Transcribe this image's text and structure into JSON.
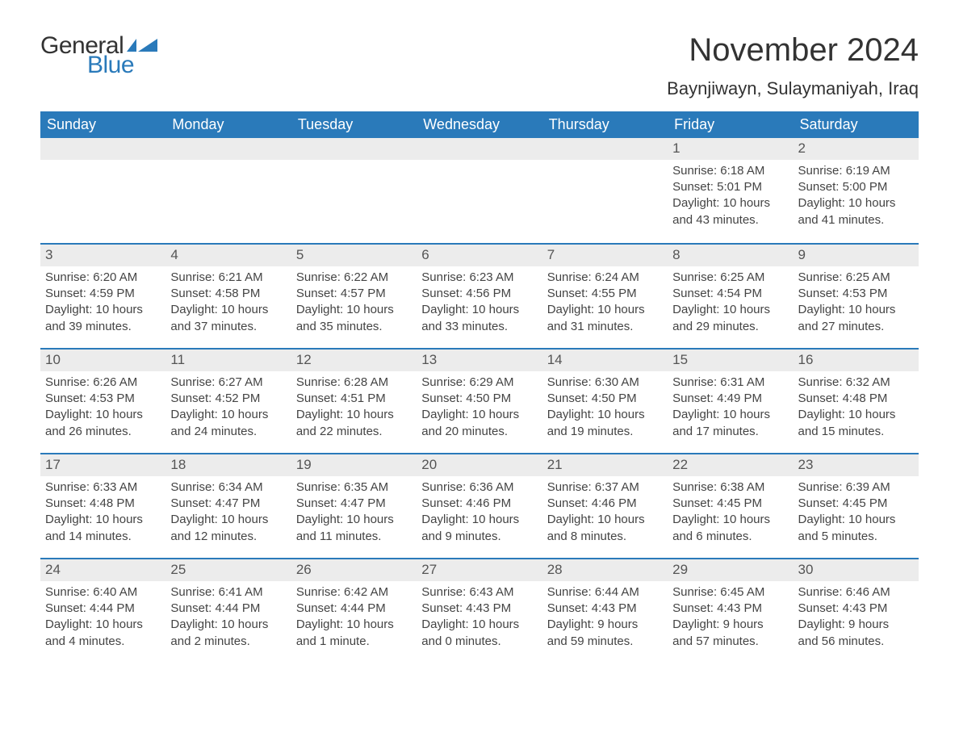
{
  "brand": {
    "general": "General",
    "blue": "Blue"
  },
  "title": "November 2024",
  "location": "Baynjiwayn, Sulaymaniyah, Iraq",
  "colors": {
    "header_bg": "#2a7aba",
    "header_text": "#ffffff",
    "day_bg": "#ececec",
    "text": "#333333",
    "border": "#2a7aba",
    "logo_blue": "#2a7aba"
  },
  "weekdays": [
    "Sunday",
    "Monday",
    "Tuesday",
    "Wednesday",
    "Thursday",
    "Friday",
    "Saturday"
  ],
  "weeks": [
    [
      null,
      null,
      null,
      null,
      null,
      {
        "day": "1",
        "sunrise": "Sunrise: 6:18 AM",
        "sunset": "Sunset: 5:01 PM",
        "daylight1": "Daylight: 10 hours",
        "daylight2": "and 43 minutes."
      },
      {
        "day": "2",
        "sunrise": "Sunrise: 6:19 AM",
        "sunset": "Sunset: 5:00 PM",
        "daylight1": "Daylight: 10 hours",
        "daylight2": "and 41 minutes."
      }
    ],
    [
      {
        "day": "3",
        "sunrise": "Sunrise: 6:20 AM",
        "sunset": "Sunset: 4:59 PM",
        "daylight1": "Daylight: 10 hours",
        "daylight2": "and 39 minutes."
      },
      {
        "day": "4",
        "sunrise": "Sunrise: 6:21 AM",
        "sunset": "Sunset: 4:58 PM",
        "daylight1": "Daylight: 10 hours",
        "daylight2": "and 37 minutes."
      },
      {
        "day": "5",
        "sunrise": "Sunrise: 6:22 AM",
        "sunset": "Sunset: 4:57 PM",
        "daylight1": "Daylight: 10 hours",
        "daylight2": "and 35 minutes."
      },
      {
        "day": "6",
        "sunrise": "Sunrise: 6:23 AM",
        "sunset": "Sunset: 4:56 PM",
        "daylight1": "Daylight: 10 hours",
        "daylight2": "and 33 minutes."
      },
      {
        "day": "7",
        "sunrise": "Sunrise: 6:24 AM",
        "sunset": "Sunset: 4:55 PM",
        "daylight1": "Daylight: 10 hours",
        "daylight2": "and 31 minutes."
      },
      {
        "day": "8",
        "sunrise": "Sunrise: 6:25 AM",
        "sunset": "Sunset: 4:54 PM",
        "daylight1": "Daylight: 10 hours",
        "daylight2": "and 29 minutes."
      },
      {
        "day": "9",
        "sunrise": "Sunrise: 6:25 AM",
        "sunset": "Sunset: 4:53 PM",
        "daylight1": "Daylight: 10 hours",
        "daylight2": "and 27 minutes."
      }
    ],
    [
      {
        "day": "10",
        "sunrise": "Sunrise: 6:26 AM",
        "sunset": "Sunset: 4:53 PM",
        "daylight1": "Daylight: 10 hours",
        "daylight2": "and 26 minutes."
      },
      {
        "day": "11",
        "sunrise": "Sunrise: 6:27 AM",
        "sunset": "Sunset: 4:52 PM",
        "daylight1": "Daylight: 10 hours",
        "daylight2": "and 24 minutes."
      },
      {
        "day": "12",
        "sunrise": "Sunrise: 6:28 AM",
        "sunset": "Sunset: 4:51 PM",
        "daylight1": "Daylight: 10 hours",
        "daylight2": "and 22 minutes."
      },
      {
        "day": "13",
        "sunrise": "Sunrise: 6:29 AM",
        "sunset": "Sunset: 4:50 PM",
        "daylight1": "Daylight: 10 hours",
        "daylight2": "and 20 minutes."
      },
      {
        "day": "14",
        "sunrise": "Sunrise: 6:30 AM",
        "sunset": "Sunset: 4:50 PM",
        "daylight1": "Daylight: 10 hours",
        "daylight2": "and 19 minutes."
      },
      {
        "day": "15",
        "sunrise": "Sunrise: 6:31 AM",
        "sunset": "Sunset: 4:49 PM",
        "daylight1": "Daylight: 10 hours",
        "daylight2": "and 17 minutes."
      },
      {
        "day": "16",
        "sunrise": "Sunrise: 6:32 AM",
        "sunset": "Sunset: 4:48 PM",
        "daylight1": "Daylight: 10 hours",
        "daylight2": "and 15 minutes."
      }
    ],
    [
      {
        "day": "17",
        "sunrise": "Sunrise: 6:33 AM",
        "sunset": "Sunset: 4:48 PM",
        "daylight1": "Daylight: 10 hours",
        "daylight2": "and 14 minutes."
      },
      {
        "day": "18",
        "sunrise": "Sunrise: 6:34 AM",
        "sunset": "Sunset: 4:47 PM",
        "daylight1": "Daylight: 10 hours",
        "daylight2": "and 12 minutes."
      },
      {
        "day": "19",
        "sunrise": "Sunrise: 6:35 AM",
        "sunset": "Sunset: 4:47 PM",
        "daylight1": "Daylight: 10 hours",
        "daylight2": "and 11 minutes."
      },
      {
        "day": "20",
        "sunrise": "Sunrise: 6:36 AM",
        "sunset": "Sunset: 4:46 PM",
        "daylight1": "Daylight: 10 hours",
        "daylight2": "and 9 minutes."
      },
      {
        "day": "21",
        "sunrise": "Sunrise: 6:37 AM",
        "sunset": "Sunset: 4:46 PM",
        "daylight1": "Daylight: 10 hours",
        "daylight2": "and 8 minutes."
      },
      {
        "day": "22",
        "sunrise": "Sunrise: 6:38 AM",
        "sunset": "Sunset: 4:45 PM",
        "daylight1": "Daylight: 10 hours",
        "daylight2": "and 6 minutes."
      },
      {
        "day": "23",
        "sunrise": "Sunrise: 6:39 AM",
        "sunset": "Sunset: 4:45 PM",
        "daylight1": "Daylight: 10 hours",
        "daylight2": "and 5 minutes."
      }
    ],
    [
      {
        "day": "24",
        "sunrise": "Sunrise: 6:40 AM",
        "sunset": "Sunset: 4:44 PM",
        "daylight1": "Daylight: 10 hours",
        "daylight2": "and 4 minutes."
      },
      {
        "day": "25",
        "sunrise": "Sunrise: 6:41 AM",
        "sunset": "Sunset: 4:44 PM",
        "daylight1": "Daylight: 10 hours",
        "daylight2": "and 2 minutes."
      },
      {
        "day": "26",
        "sunrise": "Sunrise: 6:42 AM",
        "sunset": "Sunset: 4:44 PM",
        "daylight1": "Daylight: 10 hours",
        "daylight2": "and 1 minute."
      },
      {
        "day": "27",
        "sunrise": "Sunrise: 6:43 AM",
        "sunset": "Sunset: 4:43 PM",
        "daylight1": "Daylight: 10 hours",
        "daylight2": "and 0 minutes."
      },
      {
        "day": "28",
        "sunrise": "Sunrise: 6:44 AM",
        "sunset": "Sunset: 4:43 PM",
        "daylight1": "Daylight: 9 hours",
        "daylight2": "and 59 minutes."
      },
      {
        "day": "29",
        "sunrise": "Sunrise: 6:45 AM",
        "sunset": "Sunset: 4:43 PM",
        "daylight1": "Daylight: 9 hours",
        "daylight2": "and 57 minutes."
      },
      {
        "day": "30",
        "sunrise": "Sunrise: 6:46 AM",
        "sunset": "Sunset: 4:43 PM",
        "daylight1": "Daylight: 9 hours",
        "daylight2": "and 56 minutes."
      }
    ]
  ]
}
